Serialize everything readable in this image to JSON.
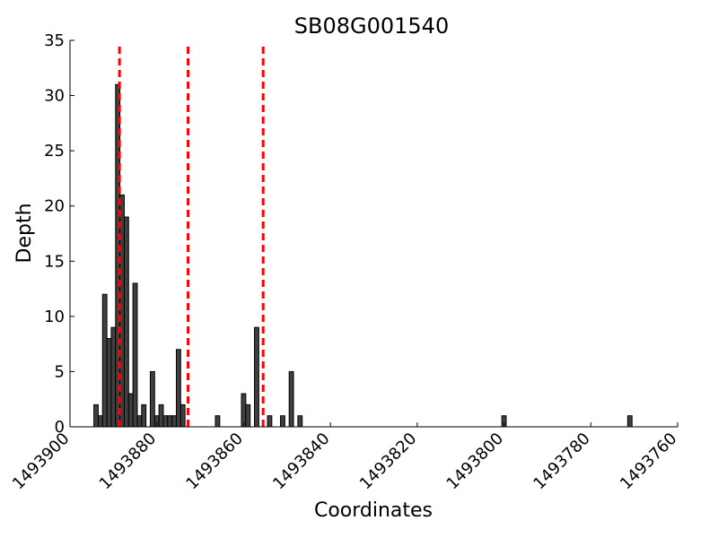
{
  "chart_data": {
    "type": "bar",
    "title": "SB08G001540",
    "xlabel": "Coordinates",
    "ylabel": "Depth",
    "xlim": [
      1493900,
      1493760
    ],
    "ylim": [
      0,
      35
    ],
    "x_ticks": [
      1493900,
      1493880,
      1493860,
      1493840,
      1493820,
      1493800,
      1493780,
      1493760
    ],
    "y_ticks": [
      0,
      5,
      10,
      15,
      20,
      25,
      30,
      35
    ],
    "x_tick_labels": [
      "1493900",
      "1493880",
      "1493860",
      "1493840",
      "1493820",
      "1493800",
      "1493780",
      "1493760"
    ],
    "y_tick_labels": [
      "0",
      "5",
      "10",
      "15",
      "20",
      "25",
      "30",
      "35"
    ],
    "bins": [
      {
        "x": 1493894,
        "value": 2
      },
      {
        "x": 1493893,
        "value": 1
      },
      {
        "x": 1493892,
        "value": 12
      },
      {
        "x": 1493891,
        "value": 8
      },
      {
        "x": 1493890,
        "value": 9
      },
      {
        "x": 1493889,
        "value": 31
      },
      {
        "x": 1493888,
        "value": 21
      },
      {
        "x": 1493887,
        "value": 19
      },
      {
        "x": 1493886,
        "value": 3
      },
      {
        "x": 1493885,
        "value": 13
      },
      {
        "x": 1493884,
        "value": 1
      },
      {
        "x": 1493883,
        "value": 2
      },
      {
        "x": 1493881,
        "value": 5
      },
      {
        "x": 1493880,
        "value": 1
      },
      {
        "x": 1493879,
        "value": 2
      },
      {
        "x": 1493878,
        "value": 1
      },
      {
        "x": 1493877,
        "value": 1
      },
      {
        "x": 1493876,
        "value": 1
      },
      {
        "x": 1493875,
        "value": 7
      },
      {
        "x": 1493874,
        "value": 2
      },
      {
        "x": 1493866,
        "value": 1
      },
      {
        "x": 1493860,
        "value": 3
      },
      {
        "x": 1493859,
        "value": 2
      },
      {
        "x": 1493857,
        "value": 9
      },
      {
        "x": 1493854,
        "value": 1
      },
      {
        "x": 1493851,
        "value": 1
      },
      {
        "x": 1493849,
        "value": 5
      },
      {
        "x": 1493847,
        "value": 1
      },
      {
        "x": 1493800,
        "value": 1
      },
      {
        "x": 1493771,
        "value": 1
      }
    ],
    "bin_width": 1,
    "vertical_lines": [
      1493888.6,
      1493872.8,
      1493855.5
    ],
    "vertical_line_color": "#ff0000",
    "bar_color": "#404040",
    "grid": false
  }
}
